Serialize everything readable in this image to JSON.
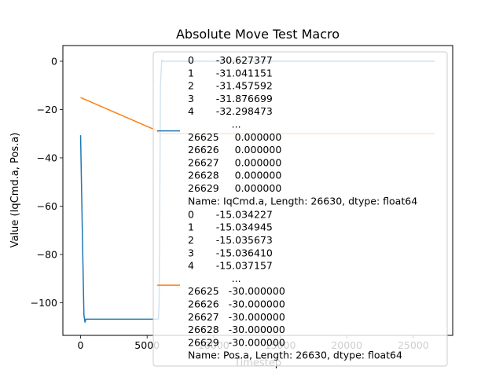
{
  "chart_data": {
    "type": "line",
    "title": "Absolute Move Test Macro",
    "xlabel": "Timestep",
    "ylabel": "Value (IqCmd.a, Pos.a)",
    "xlim": [
      -1331,
      27960
    ],
    "ylim": [
      -113.5,
      6.5
    ],
    "x_ticks": [
      0,
      5000,
      10000,
      15000,
      20000,
      25000
    ],
    "x_tick_labels": [
      "0",
      "5000",
      "10000",
      "15000",
      "20000",
      "25000"
    ],
    "y_ticks": [
      0,
      -20,
      -40,
      -60,
      -80,
      -100
    ],
    "y_tick_labels": [
      "0",
      "−20",
      "−40",
      "−60",
      "−80",
      "−100"
    ],
    "grid": false,
    "legend_placement": "right",
    "series": [
      {
        "color": "#1f77b4",
        "x": [
          0,
          130,
          250,
          330,
          400,
          600,
          1000,
          2000,
          3000,
          4000,
          5000,
          5850,
          5900,
          5950,
          6000,
          6100,
          6200,
          7000,
          10000,
          15000,
          20000,
          26629
        ],
        "y": [
          -30.63,
          -70,
          -105,
          -108,
          -106.8,
          -106.8,
          -106.8,
          -106.8,
          -106.8,
          -106.8,
          -106.8,
          -106.8,
          -100,
          -60,
          -10,
          0.5,
          0,
          0,
          0,
          0,
          0,
          0
        ],
        "legend_lines": [
          "0       -30.627377",
          "1       -31.041151",
          "2       -31.457592",
          "3       -31.876699",
          "4       -32.298473",
          "              ...",
          "26625     0.000000",
          "26626     0.000000",
          "26627     0.000000",
          "26628     0.000000",
          "26629     0.000000",
          "Name: IqCmd.a, Length: 26630, dtype: float64"
        ]
      },
      {
        "color": "#ff7f0e",
        "x": [
          0,
          5600,
          6000,
          26629
        ],
        "y": [
          -15.03,
          -28.4,
          -30,
          -30
        ],
        "legend_lines": [
          "0       -15.034227",
          "1       -15.034945",
          "2       -15.035673",
          "3       -15.036410",
          "4       -15.037157",
          "              ...",
          "26625   -30.000000",
          "26626   -30.000000",
          "26627   -30.000000",
          "26628   -30.000000",
          "26629   -30.000000",
          "Name: Pos.a, Length: 26630, dtype: float64"
        ]
      }
    ]
  }
}
